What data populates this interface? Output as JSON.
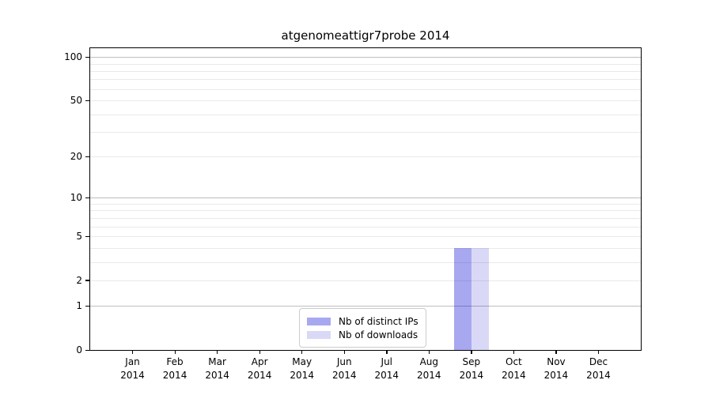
{
  "chart_data": {
    "type": "bar",
    "title": "atgenomeattigr7probe 2014",
    "x": {
      "categories": [
        "Jan",
        "Feb",
        "Mar",
        "Apr",
        "May",
        "Jun",
        "Jul",
        "Aug",
        "Sep",
        "Oct",
        "Nov",
        "Dec"
      ],
      "year_label": "2014"
    },
    "y": {
      "scale": "log1p",
      "lim": [
        0,
        115
      ],
      "tick_labels": [
        0,
        1,
        2,
        5,
        10,
        20,
        50,
        100
      ],
      "major_gridlines": [
        1,
        10,
        100
      ],
      "minor_gridlines": [
        2,
        3,
        4,
        5,
        6,
        7,
        8,
        9,
        20,
        30,
        40,
        50,
        60,
        70,
        80,
        90
      ],
      "grid": true
    },
    "series": [
      {
        "name": "Nb of distinct IPs",
        "color_hex": "#a9a9f1",
        "fill": "rgba(0,0,211,0.34)",
        "values": [
          0,
          0,
          0,
          0,
          0,
          0,
          0,
          0,
          4,
          0,
          0,
          0
        ]
      },
      {
        "name": "Nb of downloads",
        "color_hex": "#dadaf8",
        "fill": "rgba(0,0,200,0.15)",
        "values": [
          0,
          0,
          0,
          0,
          0,
          0,
          0,
          0,
          4,
          0,
          0,
          0
        ]
      }
    ],
    "legend": {
      "position": "bottom-center",
      "entries": [
        "Nb of distinct IPs",
        "Nb of downloads"
      ]
    }
  },
  "colors": {
    "axis": "#000000",
    "grid_major": "#bdbdbd",
    "grid_minor": "#e9e9e9",
    "background": "#ffffff",
    "legend_border": "#cccccc"
  }
}
